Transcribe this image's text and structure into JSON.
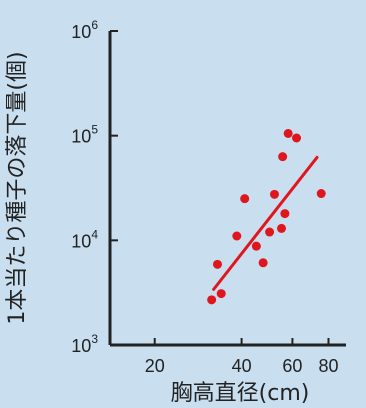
{
  "chart_data": {
    "type": "scatter",
    "title": "",
    "xlabel": "胸高直径(cm)",
    "ylabel": "1本当たり種子の落下量(個)",
    "xscale": "log",
    "yscale": "log",
    "xlim": [
      14,
      92
    ],
    "ylim": [
      1000,
      1000000
    ],
    "x_ticks": [
      {
        "value": 20,
        "label": "20"
      },
      {
        "value": 40,
        "label": "40"
      },
      {
        "value": 60,
        "label": "60"
      },
      {
        "value": 80,
        "label": "80"
      }
    ],
    "y_ticks": [
      {
        "value": 1000,
        "base": "10",
        "exp": "3"
      },
      {
        "value": 10000,
        "base": "10",
        "exp": "4"
      },
      {
        "value": 100000,
        "base": "10",
        "exp": "5"
      },
      {
        "value": 1000000,
        "base": "10",
        "exp": "6"
      }
    ],
    "points": [
      {
        "x": 31.5,
        "y": 2700
      },
      {
        "x": 33,
        "y": 5900
      },
      {
        "x": 34,
        "y": 3100
      },
      {
        "x": 38.5,
        "y": 11000
      },
      {
        "x": 41,
        "y": 25000
      },
      {
        "x": 45,
        "y": 8800
      },
      {
        "x": 47.5,
        "y": 6100
      },
      {
        "x": 50,
        "y": 12000
      },
      {
        "x": 52,
        "y": 27500
      },
      {
        "x": 55,
        "y": 13000
      },
      {
        "x": 55.5,
        "y": 63000
      },
      {
        "x": 56.5,
        "y": 18000
      },
      {
        "x": 58,
        "y": 105000
      },
      {
        "x": 62,
        "y": 95000
      },
      {
        "x": 75.5,
        "y": 28000
      }
    ],
    "trendline": {
      "x": [
        32,
        73
      ],
      "y": [
        3400,
        62000
      ]
    },
    "colors": {
      "points": "#e0161e",
      "trendline": "#e0161e",
      "axes": "#222222",
      "background": "#c9dff0"
    },
    "grid": false
  }
}
